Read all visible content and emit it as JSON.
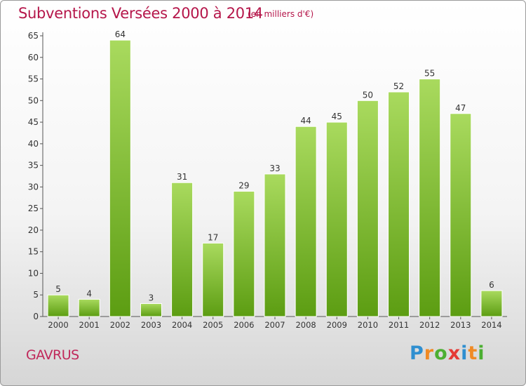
{
  "title": "Subventions Versées 2000 à 2014",
  "subtitle": "(en milliers d'€)",
  "commune": "GAVRUS",
  "logo": {
    "letters": [
      "P",
      "r",
      "o",
      "x",
      "i",
      "t",
      "i"
    ],
    "colors": [
      "#2f8fd0",
      "#f08a24",
      "#4caf32",
      "#e53935",
      "#2f8fd0",
      "#f08a24",
      "#4caf32"
    ]
  },
  "colors": {
    "title": "#b5164a",
    "bar_light": "#a6d65a",
    "bar_dark": "#5e9f14",
    "axis": "#555555",
    "grid": "#e2e2e2"
  },
  "chart_data": {
    "type": "bar",
    "title": "Subventions Versées 2000 à 2014",
    "subtitle": "(en milliers d'€)",
    "categories": [
      "2000",
      "2001",
      "2002",
      "2003",
      "2004",
      "2005",
      "2006",
      "2007",
      "2008",
      "2009",
      "2010",
      "2011",
      "2012",
      "2013",
      "2014"
    ],
    "values": [
      5,
      4,
      64,
      3,
      31,
      17,
      29,
      33,
      44,
      45,
      50,
      52,
      55,
      47,
      6
    ],
    "ylim": [
      0,
      65
    ],
    "yticks": [
      0,
      5,
      10,
      15,
      20,
      25,
      30,
      35,
      40,
      45,
      50,
      55,
      60,
      65
    ],
    "grid": false,
    "data_labels": true
  }
}
